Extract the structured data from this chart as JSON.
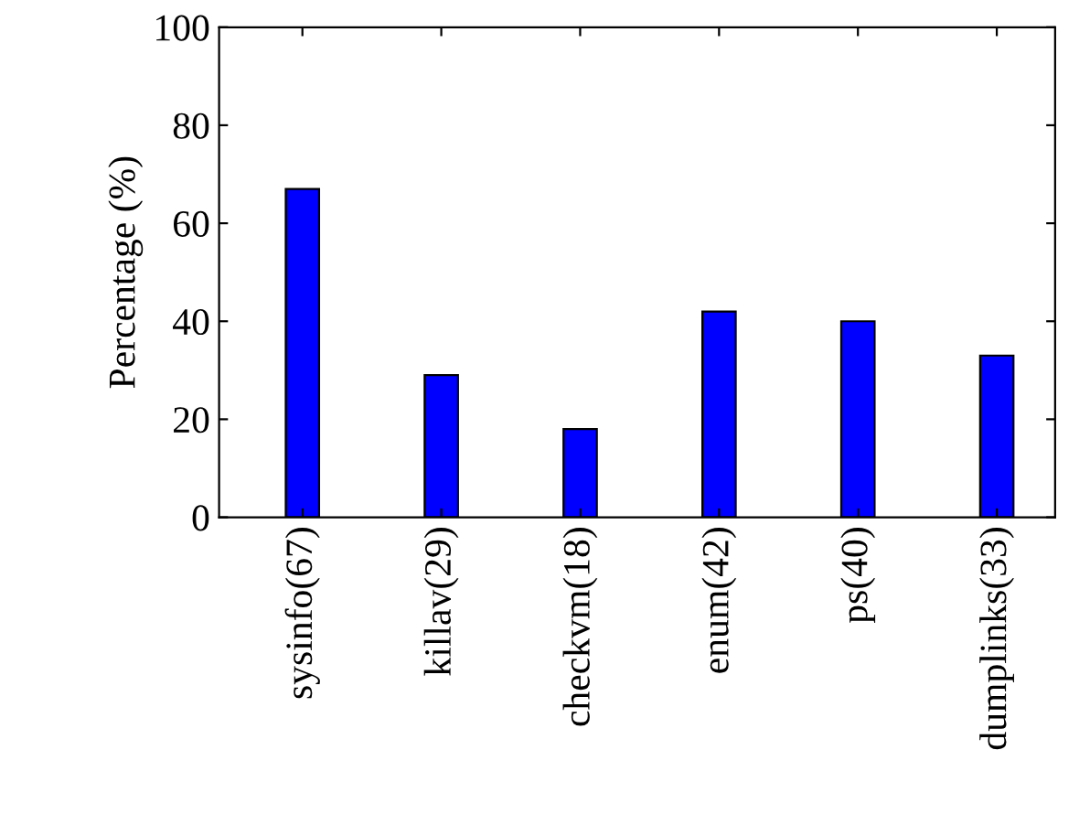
{
  "chart_data": {
    "type": "bar",
    "ylabel": "Percentage (%)",
    "categories": [
      "sysinfo(67)",
      "killav(29)",
      "checkvm(18)",
      "enum(42)",
      "ps(40)",
      "dumplinks(33)"
    ],
    "values": [
      67,
      29,
      18,
      42,
      40,
      33
    ],
    "color": "#0000ff",
    "ylim": [
      0,
      100
    ],
    "yticks": [
      0,
      20,
      40,
      60,
      80,
      100
    ],
    "grid": false
  }
}
